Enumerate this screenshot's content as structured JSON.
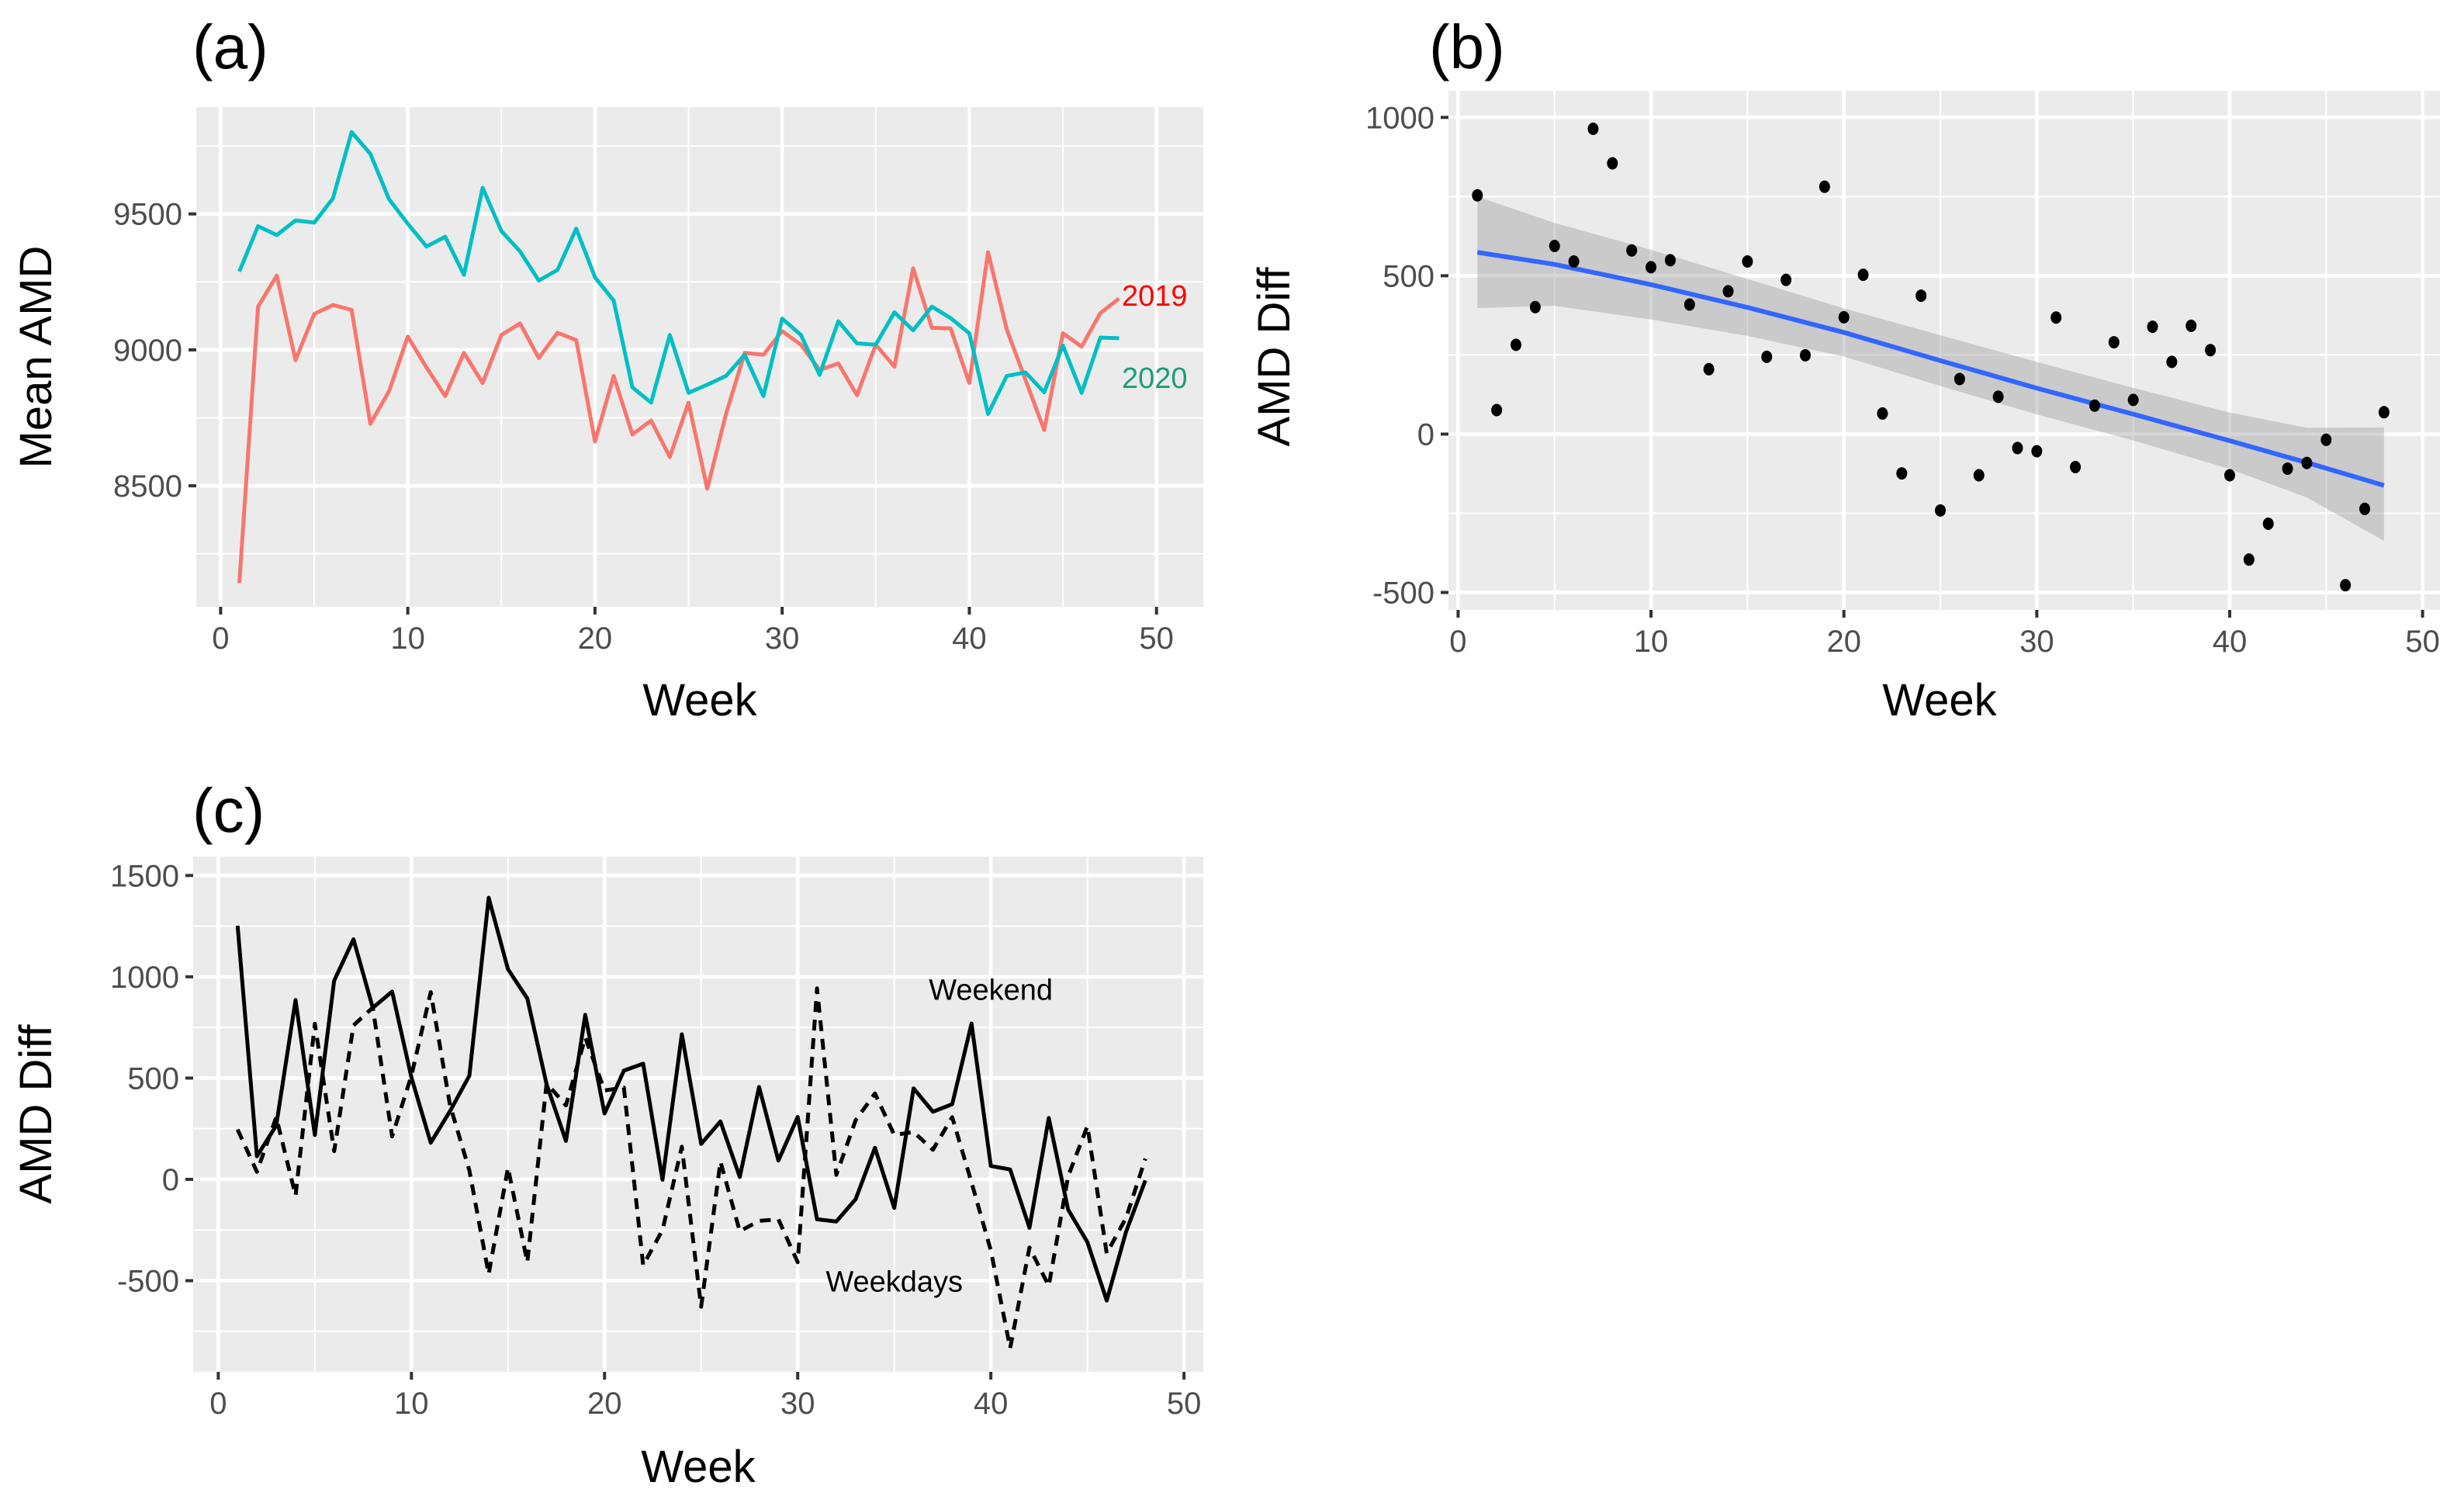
{
  "chart_data": [
    {
      "id": "a",
      "type": "line",
      "title": "(a)",
      "xlabel": "Week",
      "ylabel": "Mean AMD",
      "xlim": [
        -1.3,
        52.5
      ],
      "ylim": [
        8055,
        9893
      ],
      "xticks": [
        0,
        10,
        20,
        30,
        40,
        50
      ],
      "xminor": [
        5,
        15,
        25,
        35,
        45
      ],
      "yticks": [
        8500,
        9000,
        9500
      ],
      "yminor": [
        8250,
        8750,
        9250,
        9750
      ],
      "grid": true,
      "x": [
        1,
        2,
        3,
        4,
        5,
        6,
        7,
        8,
        9,
        10,
        11,
        12,
        13,
        14,
        15,
        16,
        17,
        18,
        19,
        20,
        21,
        22,
        23,
        24,
        25,
        26,
        27,
        28,
        29,
        30,
        31,
        32,
        33,
        34,
        35,
        36,
        37,
        38,
        39,
        40,
        41,
        42,
        43,
        44,
        45,
        46,
        47,
        48
      ],
      "series": [
        {
          "name": "2019",
          "color": "#F8766D",
          "label_color": "#FF0000",
          "values": [
            8142,
            9159,
            9273,
            8962,
            9132,
            9165,
            9147,
            8728,
            8848,
            9049,
            8935,
            8830,
            8989,
            8878,
            9055,
            9097,
            8970,
            9063,
            9036,
            8663,
            8904,
            8689,
            8740,
            8606,
            8806,
            8489,
            8764,
            8989,
            8982,
            9069,
            9019,
            8926,
            8950,
            8833,
            9019,
            8938,
            9300,
            9081,
            9079,
            8878,
            9359,
            9075,
            8890,
            8705,
            9061,
            9012,
            9135,
            9189
          ]
        },
        {
          "name": "2020",
          "color": "#00BFC4",
          "label_color": "#1B9E77",
          "values": [
            9288,
            9455,
            9422,
            9476,
            9468,
            9557,
            9801,
            9721,
            9554,
            9464,
            9380,
            9416,
            9276,
            9596,
            9437,
            9362,
            9255,
            9294,
            9446,
            9267,
            9181,
            8862,
            8806,
            9055,
            8842,
            8872,
            8904,
            8982,
            8830,
            9115,
            9055,
            8908,
            9105,
            9024,
            9019,
            9138,
            9072,
            9159,
            9117,
            9061,
            8764,
            8904,
            8917,
            8844,
            9016,
            8842,
            9045,
            9043
          ]
        }
      ]
    },
    {
      "id": "b",
      "type": "scatter",
      "title": "(b)",
      "xlabel": "Week",
      "ylabel": "AMD Diff",
      "xlim": [
        -0.5,
        50.9
      ],
      "ylim": [
        -555,
        1084
      ],
      "xticks": [
        0,
        10,
        20,
        30,
        40,
        50
      ],
      "xminor": [
        5,
        15,
        25,
        35,
        45
      ],
      "yticks": [
        -500,
        0,
        500,
        1000
      ],
      "yminor": [
        -250,
        250,
        750
      ],
      "grid": true,
      "x": [
        1,
        2,
        3,
        4,
        5,
        6,
        7,
        8,
        9,
        10,
        11,
        12,
        13,
        14,
        15,
        16,
        17,
        18,
        19,
        20,
        21,
        22,
        23,
        24,
        25,
        26,
        27,
        28,
        29,
        30,
        31,
        32,
        33,
        34,
        35,
        36,
        37,
        38,
        39,
        40,
        41,
        42,
        43,
        44,
        45,
        46,
        47,
        48
      ],
      "y": [
        754,
        76,
        282,
        401,
        594,
        545,
        964,
        855,
        580,
        527,
        549,
        409,
        205,
        451,
        545,
        244,
        487,
        249,
        781,
        369,
        503,
        65,
        -124,
        437,
        -241,
        174,
        -130,
        118,
        -44,
        -54,
        368,
        -104,
        90,
        290,
        108,
        339,
        228,
        342,
        265,
        -130,
        -396,
        -283,
        -109,
        -91,
        -18,
        -477,
        -236,
        69
      ],
      "point_color": "#000000",
      "smooth": {
        "color": "#3366FF",
        "band_color": "#999999",
        "x": [
          1,
          5,
          10,
          15,
          20,
          25,
          30,
          35,
          40,
          44,
          48
        ],
        "fit": [
          574,
          536,
          472,
          400,
          321,
          232,
          145,
          63,
          -21,
          -90,
          -162
        ],
        "lower": [
          398,
          405,
          362,
          310,
          245,
          152,
          62,
          -20,
          -110,
          -200,
          -337
        ],
        "upper": [
          750,
          667,
          582,
          490,
          397,
          312,
          228,
          146,
          68,
          20,
          21
        ]
      }
    },
    {
      "id": "c",
      "type": "line",
      "title": "(c)",
      "xlabel": "Week",
      "ylabel": "AMD Diff",
      "xlim": [
        -1.3,
        51.0
      ],
      "ylim": [
        -950,
        1593
      ],
      "xticks": [
        0,
        10,
        20,
        30,
        40,
        50
      ],
      "xminor": [
        5,
        15,
        25,
        35,
        45
      ],
      "yticks": [
        -500,
        0,
        500,
        1000,
        1500
      ],
      "yminor": [
        -750,
        -250,
        250,
        750,
        1250
      ],
      "grid": true,
      "x": [
        1,
        2,
        3,
        4,
        5,
        6,
        7,
        8,
        9,
        10,
        11,
        12,
        13,
        14,
        15,
        16,
        17,
        18,
        19,
        20,
        21,
        22,
        23,
        24,
        25,
        26,
        27,
        28,
        29,
        30,
        31,
        32,
        33,
        34,
        35,
        36,
        37,
        38,
        39,
        40,
        41,
        42,
        43,
        44,
        45,
        46,
        47,
        48
      ],
      "series": [
        {
          "name": "Weekend",
          "style": "solid",
          "color": "#000000",
          "label_week": 40,
          "label_value": 940,
          "values": [
            1252,
            114,
            266,
            885,
            219,
            981,
            1185,
            847,
            927,
            503,
            181,
            337,
            512,
            1390,
            1037,
            893,
            469,
            190,
            812,
            325,
            537,
            571,
            -2,
            716,
            175,
            286,
            12,
            456,
            93,
            308,
            -197,
            -208,
            -98,
            156,
            -141,
            449,
            334,
            371,
            769,
            66,
            49,
            -239,
            303,
            -149,
            -310,
            -598,
            -259,
            -5
          ]
        },
        {
          "name": "Weekdays",
          "style": "dashed",
          "color": "#000000",
          "label_week": 35,
          "label_value": -500,
          "values": [
            246,
            37,
            307,
            -80,
            768,
            139,
            760,
            848,
            212,
            512,
            924,
            365,
            44,
            -468,
            58,
            -409,
            475,
            365,
            700,
            439,
            453,
            -424,
            -250,
            161,
            -629,
            88,
            -256,
            -205,
            -197,
            -409,
            943,
            22,
            292,
            424,
            219,
            234,
            146,
            307,
            -15,
            -351,
            -833,
            -336,
            -526,
            15,
            263,
            -365,
            -190,
            102
          ]
        }
      ]
    }
  ]
}
